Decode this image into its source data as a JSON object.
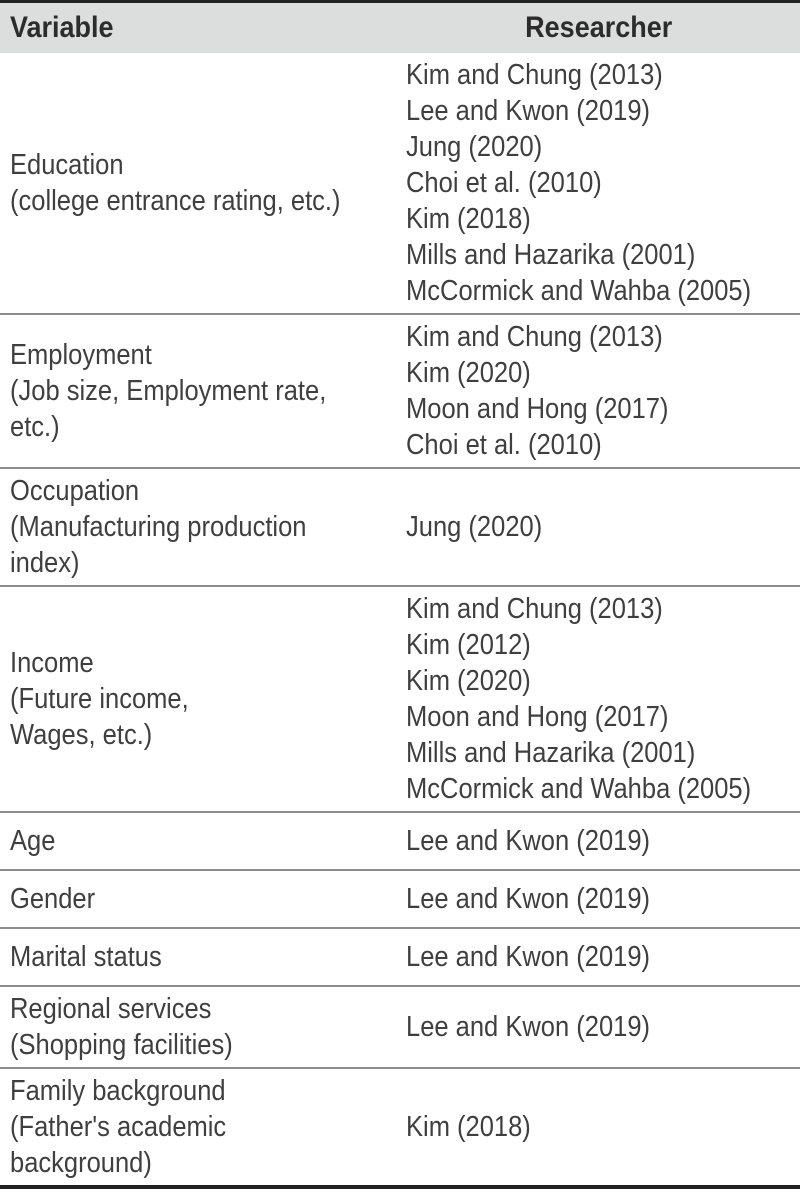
{
  "colors": {
    "header_bg": "#dcdddd",
    "border_strong": "#222222",
    "row_divider": "#8c8c8c",
    "header_text": "#2c2c2c",
    "body_text": "#3f3f3f"
  },
  "table": {
    "columns": [
      {
        "label": "Variable"
      },
      {
        "label": "Researcher"
      }
    ],
    "rows": [
      {
        "variable": [
          "Education",
          "(college entrance rating, etc.)"
        ],
        "researchers": [
          "Kim and Chung (2013)",
          "Lee and Kwon (2019)",
          "Jung (2020)",
          "Choi et al. (2010)",
          "Kim (2018)",
          "Mills and Hazarika (2001)",
          "McCormick and Wahba (2005)"
        ]
      },
      {
        "variable": [
          "Employment",
          "(Job size, Employment rate,",
          "etc.)"
        ],
        "researchers": [
          "Kim and Chung (2013)",
          "Kim (2020)",
          "Moon and Hong (2017)",
          "Choi et al. (2010)"
        ]
      },
      {
        "variable": [
          "Occupation",
          "(Manufacturing production",
          "index)"
        ],
        "researchers": [
          "Jung (2020)"
        ]
      },
      {
        "variable": [
          "Income",
          "(Future income,",
          "Wages, etc.)"
        ],
        "researchers": [
          "Kim and Chung (2013)",
          "Kim (2012)",
          "Kim (2020)",
          "Moon and Hong (2017)",
          "Mills and Hazarika (2001)",
          "McCormick and Wahba (2005)"
        ]
      },
      {
        "variable": [
          "Age"
        ],
        "researchers": [
          "Lee and Kwon (2019)"
        ]
      },
      {
        "variable": [
          "Gender"
        ],
        "researchers": [
          "Lee and Kwon (2019)"
        ]
      },
      {
        "variable": [
          "Marital status"
        ],
        "researchers": [
          "Lee and Kwon (2019)"
        ]
      },
      {
        "variable": [
          "Regional services",
          "(Shopping facilities)"
        ],
        "researchers": [
          "Lee and Kwon (2019)"
        ]
      },
      {
        "variable": [
          "Family background",
          "(Father's academic",
          "background)"
        ],
        "researchers": [
          "Kim (2018)"
        ]
      }
    ]
  }
}
